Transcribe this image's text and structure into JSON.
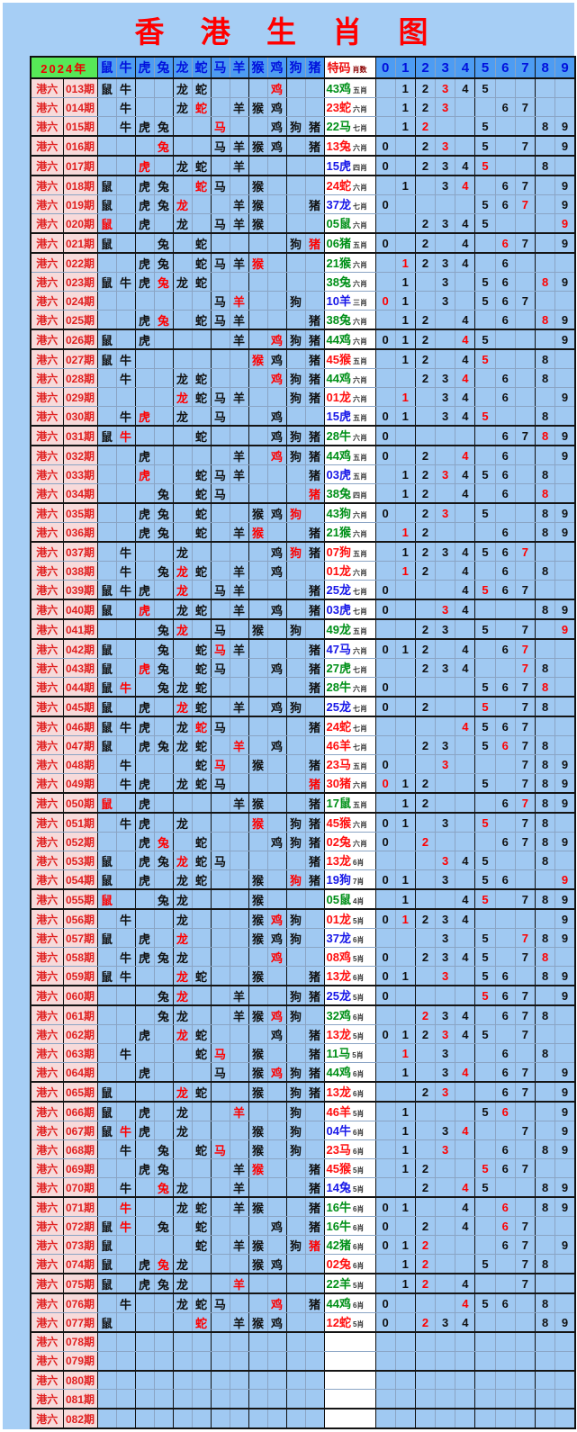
{
  "title": "香 港 生 肖 图",
  "colors": {
    "red": "#ff1010",
    "blue": "#1818e8",
    "green": "#009018",
    "page_bg": "#a6cef5",
    "cell_bg": "#a0c9f2",
    "header_bg": "#4d9cf2",
    "label_bg": "#f7dada",
    "year_bg": "#57e857",
    "special_bg": "#ffffff"
  },
  "header": {
    "year": "2024年",
    "zodiac_columns": [
      "鼠",
      "牛",
      "虎",
      "兔",
      "龙",
      "蛇",
      "马",
      "羊",
      "猴",
      "鸡",
      "狗",
      "猪"
    ],
    "special_label": "特码",
    "special_sublabel": "肖数",
    "digit_columns": [
      "0",
      "1",
      "2",
      "3",
      "4",
      "5",
      "6",
      "7",
      "8",
      "9"
    ]
  },
  "row_prefix": "港六",
  "legend": {
    "mark_black": "b",
    "mark_red": "r",
    "mark_empty": "."
  },
  "rows": [
    {
      "p": "013期",
      "z": "bb..bb...r..",
      "s": "43鸡",
      "w": "green",
      "l": "五肖",
      "d": ".bbrbb....",
      "t": false
    },
    {
      "p": "014期",
      "z": ".b..br.bbb..",
      "s": "23蛇",
      "w": "red",
      "l": "六肖",
      "d": ".bbr..bb..",
      "t": false
    },
    {
      "p": "015期",
      "z": ".bbb..r..bbb",
      "s": "22马",
      "w": "green",
      "l": "七肖",
      "d": ".br..b..bb",
      "t": true
    },
    {
      "p": "016期",
      "z": "...r..bbbb.b",
      "s": "13兔",
      "w": "red",
      "l": "六肖",
      "d": "b.br.b.b.b",
      "t": true
    },
    {
      "p": "017期",
      "z": "..r.bb.b....",
      "s": "15虎",
      "w": "blue",
      "l": "四肖",
      "d": "b.bbbr..b.",
      "t": true
    },
    {
      "p": "018期",
      "z": "b.bb.rb.b...",
      "s": "24蛇",
      "w": "red",
      "l": "六肖",
      "d": ".b.br.bb.b",
      "t": false
    },
    {
      "p": "019期",
      "z": "b.bbr..bb..b",
      "s": "37龙",
      "w": "blue",
      "l": "七肖",
      "d": "b....bbr.b",
      "t": false
    },
    {
      "p": "020期",
      "z": "r.b.b.bbb...",
      "s": "05鼠",
      "w": "green",
      "l": "六肖",
      "d": "..bbbb...r",
      "t": true
    },
    {
      "p": "021期",
      "z": "b..b.b....br",
      "s": "06猪",
      "w": "green",
      "l": "五肖",
      "d": "b.b.b.rb.b",
      "t": true
    },
    {
      "p": "022期",
      "z": "..bb.bbbr...",
      "s": "21猴",
      "w": "green",
      "l": "六肖",
      "d": ".rbbb.b...",
      "t": false
    },
    {
      "p": "023期",
      "z": "bbbrbb......",
      "s": "38兔",
      "w": "green",
      "l": "六肖",
      "d": ".b.b.bb.rb",
      "t": false
    },
    {
      "p": "024期",
      "z": "......br..b.",
      "s": "10羊",
      "w": "blue",
      "l": "三肖",
      "d": "rb.b.bbb..",
      "t": false
    },
    {
      "p": "025期",
      "z": "..br.bbb...b",
      "s": "38兔",
      "w": "green",
      "l": "六肖",
      "d": ".bb.b.b.rb",
      "t": true
    },
    {
      "p": "026期",
      "z": "b.b....b.rbb",
      "s": "44鸡",
      "w": "green",
      "l": "六肖",
      "d": "bbb.rb...b",
      "t": true
    },
    {
      "p": "027期",
      "z": "bb......rb.b",
      "s": "45猴",
      "w": "red",
      "l": "五肖",
      "d": ".bb.br..b.",
      "t": false
    },
    {
      "p": "028期",
      "z": ".b..bb...rbb",
      "s": "44鸡",
      "w": "green",
      "l": "六肖",
      "d": "..bbr.b.b.",
      "t": false
    },
    {
      "p": "029期",
      "z": "....rbbb..bb",
      "s": "01龙",
      "w": "red",
      "l": "六肖",
      "d": ".r.bb.b..b",
      "t": false
    },
    {
      "p": "030期",
      "z": ".br.b.b..b..",
      "s": "15虎",
      "w": "blue",
      "l": "五肖",
      "d": "bb.bbr..b.",
      "t": true
    },
    {
      "p": "031期",
      "z": "br...b...bbb",
      "s": "28牛",
      "w": "green",
      "l": "六肖",
      "d": "b.....bbrb",
      "t": true
    },
    {
      "p": "032期",
      "z": "..b....b.rbb",
      "s": "44鸡",
      "w": "green",
      "l": "五肖",
      "d": "b.b.r.b..b",
      "t": false
    },
    {
      "p": "033期",
      "z": "..r..bbb...b",
      "s": "03虎",
      "w": "blue",
      "l": "五肖",
      "d": ".bbrbbb.b.",
      "t": false
    },
    {
      "p": "034期",
      "z": "...b.bb....r",
      "s": "38兔",
      "w": "green",
      "l": "四肖",
      "d": ".bb.b.b.r.",
      "t": true
    },
    {
      "p": "035期",
      "z": "..bb.b..bbr.",
      "s": "43狗",
      "w": "green",
      "l": "六肖",
      "d": "b.br.b..bb",
      "t": false
    },
    {
      "p": "036期",
      "z": "..bb.b.br..b",
      "s": "21猴",
      "w": "green",
      "l": "六肖",
      "d": ".rb...b.bb",
      "t": true
    },
    {
      "p": "037期",
      "z": ".b..b....brb",
      "s": "07狗",
      "w": "red",
      "l": "五肖",
      "d": ".bbbbbbr..",
      "t": false
    },
    {
      "p": "038期",
      "z": ".b.brb.b.b..",
      "s": "01龙",
      "w": "red",
      "l": "六肖",
      "d": ".rb.b.b.b.",
      "t": false
    },
    {
      "p": "039期",
      "z": "bbb.r.bb...b",
      "s": "25龙",
      "w": "blue",
      "l": "七肖",
      "d": "b...brbb..",
      "t": true
    },
    {
      "p": "040期",
      "z": "b.r.bb.b.b.b",
      "s": "03虎",
      "w": "blue",
      "l": "七肖",
      "d": "b..rb...bb",
      "t": true
    },
    {
      "p": "041期",
      "z": "...br.b.b.b.",
      "s": "49龙",
      "w": "green",
      "l": "五肖",
      "d": "..bb.b.b.r",
      "t": true
    },
    {
      "p": "042期",
      "z": "b..b.brb...b",
      "s": "47马",
      "w": "blue",
      "l": "六肖",
      "d": "bbb.b.br..",
      "t": false
    },
    {
      "p": "043期",
      "z": "b.rb.bb..b.b",
      "s": "27虎",
      "w": "green",
      "l": "七肖",
      "d": "..bbb..rb.",
      "t": false
    },
    {
      "p": "044期",
      "z": "br.bbb.....b",
      "s": "28牛",
      "w": "green",
      "l": "六肖",
      "d": "b....bbbr.",
      "t": true
    },
    {
      "p": "045期",
      "z": "b.b.rb.b.bb.",
      "s": "25龙",
      "w": "blue",
      "l": "七肖",
      "d": "b.b..r.bb.",
      "t": true
    },
    {
      "p": "046期",
      "z": "bbb.brb....b",
      "s": "24蛇",
      "w": "red",
      "l": "七肖",
      "d": "....rbbb..",
      "t": false
    },
    {
      "p": "047期",
      "z": "b.bbbb.r.b..",
      "s": "46羊",
      "w": "red",
      "l": "七肖",
      "d": "..bb.brbb.",
      "t": false
    },
    {
      "p": "048期",
      "z": ".b...br.b..b",
      "s": "23马",
      "w": "red",
      "l": "五肖",
      "d": "b..r...bbb",
      "t": false
    },
    {
      "p": "049期",
      "z": ".bb.bbb....r",
      "s": "30猪",
      "w": "red",
      "l": "六肖",
      "d": "rbb..b.bbb",
      "t": true
    },
    {
      "p": "050期",
      "z": "r.b....bb..b",
      "s": "17鼠",
      "w": "green",
      "l": "五肖",
      "d": ".bb...brbb",
      "t": true
    },
    {
      "p": "051期",
      "z": ".bb.b...r.bb",
      "s": "45猴",
      "w": "red",
      "l": "六肖",
      "d": "bb.b.r.bb.",
      "t": false
    },
    {
      "p": "052期",
      "z": "..br.b...bbb",
      "s": "02兔",
      "w": "red",
      "l": "六肖",
      "d": "b.r...bbbb",
      "t": false
    },
    {
      "p": "053期",
      "z": "b.bbrbb....b",
      "s": "13龙",
      "w": "red",
      "l": "6肖",
      "d": "...rbb..b.",
      "t": false
    },
    {
      "p": "054期",
      "z": "b.b.bb..b.rb",
      "s": "19狗",
      "w": "blue",
      "l": "7肖",
      "d": "bb.b.bb..r",
      "t": true
    },
    {
      "p": "055期",
      "z": "r..bb...b...",
      "s": "05鼠",
      "w": "green",
      "l": "4肖",
      "d": ".b..br.bbb",
      "t": true
    },
    {
      "p": "056期",
      "z": ".b..b...brb.",
      "s": "01龙",
      "w": "red",
      "l": "5肖",
      "d": "brbbb....b",
      "t": false
    },
    {
      "p": "057期",
      "z": "b.b.r...bbb.",
      "s": "37龙",
      "w": "blue",
      "l": "6肖",
      "d": "...b.b.rbb",
      "t": false
    },
    {
      "p": "058期",
      "z": ".bbbb....r..",
      "s": "08鸡",
      "w": "red",
      "l": "5肖",
      "d": "b.bbbb.br.",
      "t": false
    },
    {
      "p": "059期",
      "z": "bb..rb..b..b",
      "s": "13龙",
      "w": "red",
      "l": "6肖",
      "d": "bb.r.bb.bb",
      "t": true
    },
    {
      "p": "060期",
      "z": "...br..b..bb",
      "s": "25龙",
      "w": "blue",
      "l": "5肖",
      "d": "b....rbb.b",
      "t": true
    },
    {
      "p": "061期",
      "z": "...bb..bbrb.",
      "s": "32鸡",
      "w": "green",
      "l": "6肖",
      "d": "..rbb.bbb.",
      "t": false
    },
    {
      "p": "062期",
      "z": "..b.rb...b.b",
      "s": "13龙",
      "w": "red",
      "l": "5肖",
      "d": "bbbrbb.b..",
      "t": false
    },
    {
      "p": "063期",
      "z": ".b...br.b..b",
      "s": "11马",
      "w": "green",
      "l": "5肖",
      "d": ".r.b..b.b.",
      "t": false
    },
    {
      "p": "064期",
      "z": "..b...b.brbb",
      "s": "44鸡",
      "w": "green",
      "l": "6肖",
      "d": ".b.br.bb.b",
      "t": true
    },
    {
      "p": "065期",
      "z": "b...rb..b.bb",
      "s": "13龙",
      "w": "red",
      "l": "6肖",
      "d": "..br..bb.b",
      "t": true
    },
    {
      "p": "066期",
      "z": "b.b.b..r..b.",
      "s": "46羊",
      "w": "red",
      "l": "5肖",
      "d": ".b...br..b",
      "t": false
    },
    {
      "p": "067期",
      "z": "brb.b...b.b.",
      "s": "04牛",
      "w": "blue",
      "l": "6肖",
      "d": ".b.br..b.b",
      "t": false
    },
    {
      "p": "068期",
      "z": ".b.b.br.b.b.",
      "s": "23马",
      "w": "red",
      "l": "6肖",
      "d": ".b.r..b.bb",
      "t": false
    },
    {
      "p": "069期",
      "z": "..bb...br..b",
      "s": "45猴",
      "w": "red",
      "l": "5肖",
      "d": ".bb..rbb..",
      "t": false
    },
    {
      "p": "070期",
      "z": ".b.rb..b...b",
      "s": "14兔",
      "w": "blue",
      "l": "5肖",
      "d": "..b.rb..bb",
      "t": true
    },
    {
      "p": "071期",
      "z": ".r..bb.bb..b",
      "s": "16牛",
      "w": "green",
      "l": "6肖",
      "d": "bb..b.r.bb",
      "t": false
    },
    {
      "p": "072期",
      "z": "br.b.b...b.b",
      "s": "16牛",
      "w": "green",
      "l": "6肖",
      "d": "b.b.b.rb..",
      "t": false
    },
    {
      "p": "073期",
      "z": "b....b.bb.br",
      "s": "42猪",
      "w": "green",
      "l": "6肖",
      "d": "bbr...bb.b",
      "t": false
    },
    {
      "p": "074期",
      "z": "b.brb...bb..",
      "s": "02兔",
      "w": "red",
      "l": "6肖",
      "d": ".br..b.bb.",
      "t": true
    },
    {
      "p": "075期",
      "z": "b.bbb..r....",
      "s": "22羊",
      "w": "green",
      "l": "5肖",
      "d": ".br.b..b..",
      "t": true
    },
    {
      "p": "076期",
      "z": ".b..bbb..r.b",
      "s": "44鸡",
      "w": "green",
      "l": "6肖",
      "d": "b...rbb.b.",
      "t": false
    },
    {
      "p": "077期",
      "z": "b....r.bbb..",
      "s": "12蛇",
      "w": "red",
      "l": "5肖",
      "d": "b.rbb...bb",
      "t": true
    },
    {
      "p": "078期",
      "z": "",
      "s": "",
      "w": "",
      "l": "",
      "d": "",
      "t": false
    },
    {
      "p": "079期",
      "z": "",
      "s": "",
      "w": "",
      "l": "",
      "d": "",
      "t": true
    },
    {
      "p": "080期",
      "z": "",
      "s": "",
      "w": "",
      "l": "",
      "d": "",
      "t": false
    },
    {
      "p": "081期",
      "z": "",
      "s": "",
      "w": "",
      "l": "",
      "d": "",
      "t": true
    },
    {
      "p": "082期",
      "z": "",
      "s": "",
      "w": "",
      "l": "",
      "d": "",
      "t": false
    }
  ]
}
